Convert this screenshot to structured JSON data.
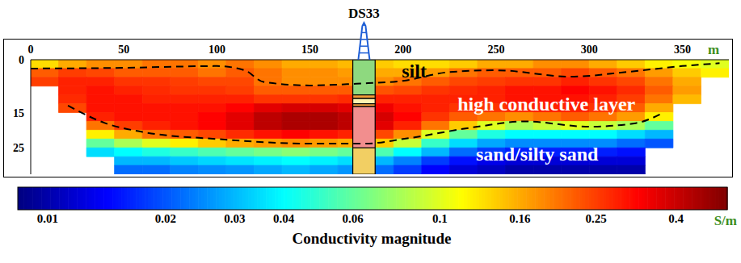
{
  "chart_data": {
    "type": "heatmap",
    "xlabel": "m",
    "xlim": [
      0,
      375
    ],
    "xticks": [
      0,
      50,
      100,
      150,
      200,
      250,
      300,
      350
    ],
    "ylim": [
      0,
      32.5
    ],
    "yticks": [
      0,
      15,
      25
    ],
    "cells": {
      "x_edges": [
        0,
        15,
        30,
        45,
        60,
        75,
        90,
        105,
        120,
        135,
        150,
        165,
        180,
        195,
        210,
        225,
        240,
        255,
        270,
        285,
        300,
        315,
        330,
        345,
        360,
        375
      ],
      "depth_edges": [
        0,
        2.5,
        5,
        7.5,
        10,
        12.5,
        15,
        17.5,
        20,
        22.5,
        25,
        27.5,
        30,
        32.5
      ],
      "values": [
        [
          0.13,
          0.16,
          0.18,
          0.18,
          0.2,
          0.2,
          0.18,
          0.2,
          0.18,
          0.16,
          0.16,
          0.15,
          0.14,
          0.13,
          0.13,
          0.14,
          0.16,
          0.16,
          0.18,
          0.18,
          0.16,
          0.14,
          0.12,
          0.11,
          0.1
        ],
        [
          0.22,
          0.25,
          0.24,
          0.22,
          0.22,
          0.22,
          0.2,
          0.22,
          0.2,
          0.18,
          0.18,
          0.17,
          0.16,
          0.16,
          0.17,
          0.2,
          0.22,
          0.22,
          0.22,
          0.24,
          0.22,
          0.2,
          0.17,
          0.14,
          0.12
        ],
        [
          0.25,
          0.28,
          0.28,
          0.26,
          0.26,
          0.25,
          0.24,
          0.24,
          0.2,
          0.18,
          0.18,
          0.18,
          0.18,
          0.2,
          0.22,
          0.24,
          0.25,
          0.26,
          0.26,
          0.28,
          0.26,
          0.24,
          0.2,
          0.16,
          null
        ],
        [
          null,
          0.28,
          0.3,
          0.28,
          0.27,
          0.26,
          0.26,
          0.25,
          0.22,
          0.22,
          0.22,
          0.22,
          0.23,
          0.24,
          0.26,
          0.27,
          0.28,
          0.3,
          0.3,
          0.32,
          0.3,
          0.27,
          0.22,
          0.17,
          null
        ],
        [
          null,
          0.27,
          0.3,
          0.3,
          0.28,
          0.28,
          0.28,
          0.28,
          0.26,
          0.26,
          0.26,
          0.27,
          0.28,
          0.28,
          0.28,
          0.28,
          0.28,
          0.3,
          0.3,
          0.3,
          0.28,
          0.25,
          0.2,
          0.15,
          null
        ],
        [
          null,
          0.24,
          0.3,
          0.3,
          0.3,
          0.3,
          0.3,
          0.32,
          0.36,
          0.38,
          0.38,
          0.36,
          0.34,
          0.3,
          0.28,
          0.26,
          0.26,
          0.27,
          0.28,
          0.28,
          0.26,
          0.22,
          0.16,
          null,
          null
        ],
        [
          null,
          null,
          0.28,
          0.3,
          0.3,
          0.3,
          0.32,
          0.36,
          0.42,
          0.45,
          0.45,
          0.42,
          0.38,
          0.32,
          0.26,
          0.22,
          0.2,
          0.18,
          0.2,
          0.22,
          0.2,
          0.17,
          0.12,
          null,
          null
        ],
        [
          null,
          null,
          0.2,
          0.25,
          0.28,
          0.3,
          0.32,
          0.36,
          0.42,
          0.45,
          0.45,
          0.42,
          0.36,
          0.28,
          0.2,
          0.14,
          0.1,
          0.08,
          0.09,
          0.1,
          0.09,
          0.08,
          0.06,
          null,
          null
        ],
        [
          null,
          null,
          0.12,
          0.16,
          0.2,
          0.22,
          0.24,
          0.27,
          0.3,
          0.32,
          0.3,
          0.28,
          0.24,
          0.18,
          0.1,
          0.06,
          0.045,
          0.04,
          0.04,
          0.04,
          0.04,
          0.035,
          0.03,
          null,
          null
        ],
        [
          null,
          null,
          0.06,
          0.08,
          0.1,
          0.12,
          0.14,
          0.16,
          0.17,
          0.18,
          0.17,
          0.16,
          0.14,
          0.09,
          0.05,
          0.035,
          0.028,
          0.025,
          0.025,
          0.025,
          0.025,
          0.022,
          0.02,
          null,
          null
        ],
        [
          null,
          null,
          0.035,
          0.04,
          0.045,
          0.05,
          0.055,
          0.06,
          0.065,
          0.07,
          0.065,
          0.06,
          0.055,
          0.04,
          0.03,
          0.022,
          0.018,
          0.016,
          0.016,
          0.016,
          0.016,
          0.015,
          null,
          null,
          null
        ],
        [
          null,
          null,
          null,
          0.03,
          0.03,
          0.032,
          0.034,
          0.036,
          0.038,
          0.04,
          0.038,
          0.035,
          0.03,
          0.024,
          0.018,
          0.015,
          0.013,
          0.012,
          0.012,
          0.012,
          0.012,
          0.012,
          null,
          null,
          null
        ],
        [
          null,
          null,
          null,
          0.022,
          0.022,
          0.024,
          0.025,
          0.026,
          0.028,
          0.03,
          0.028,
          0.026,
          0.022,
          0.018,
          0.014,
          0.012,
          0.011,
          0.01,
          0.01,
          0.01,
          0.01,
          0.01,
          null,
          null,
          null
        ]
      ]
    },
    "colorbar": {
      "label": "Conductivity magnitude",
      "unit": "S/m",
      "range": [
        0.0084,
        0.54
      ],
      "ticks": [
        0.01,
        0.02,
        0.03,
        0.04,
        0.06,
        0.1,
        0.16,
        0.25,
        0.4
      ],
      "log": true
    },
    "boundaries": [
      {
        "x": [
          0,
          50,
          100,
          115,
          125,
          150,
          175,
          200,
          225,
          250,
          290,
          320,
          350,
          370
        ],
        "depth": [
          2.5,
          2.3,
          1.8,
          3,
          6.3,
          7.3,
          6.8,
          6,
          3.5,
          3,
          4.8,
          3.5,
          1.8,
          1
        ],
        "line_style": "dashed",
        "color": "#000000"
      },
      {
        "x": [
          20,
          40,
          60,
          100,
          150,
          180,
          200,
          240,
          265,
          300,
          325,
          340
        ],
        "depth": [
          13,
          18,
          20.5,
          22.5,
          23.8,
          23.8,
          22.5,
          19,
          17.5,
          19,
          18,
          15
        ],
        "line_style": "dashed",
        "color": "#000000"
      }
    ],
    "borehole": {
      "label": "DS33",
      "x": [
        173,
        185
      ],
      "layers": [
        {
          "top": 0,
          "bottom": 10,
          "color": "#8ed97f"
        },
        {
          "top": 10,
          "bottom": 11,
          "color": "#f29b38"
        },
        {
          "top": 11,
          "bottom": 12.5,
          "color": "#fdf3b0"
        },
        {
          "top": 12.5,
          "bottom": 13.3,
          "color": "#f29b38"
        },
        {
          "top": 13.3,
          "bottom": 25,
          "color": "#f28e8e"
        },
        {
          "top": 25,
          "bottom": 32.5,
          "color": "#f2cf63"
        }
      ]
    },
    "annotations": [
      {
        "text": "silt",
        "color": "#000000"
      },
      {
        "text": "high conductive layer",
        "color": "#ffffff"
      },
      {
        "text": "sand/silty sand",
        "color": "#ffffff"
      }
    ]
  }
}
